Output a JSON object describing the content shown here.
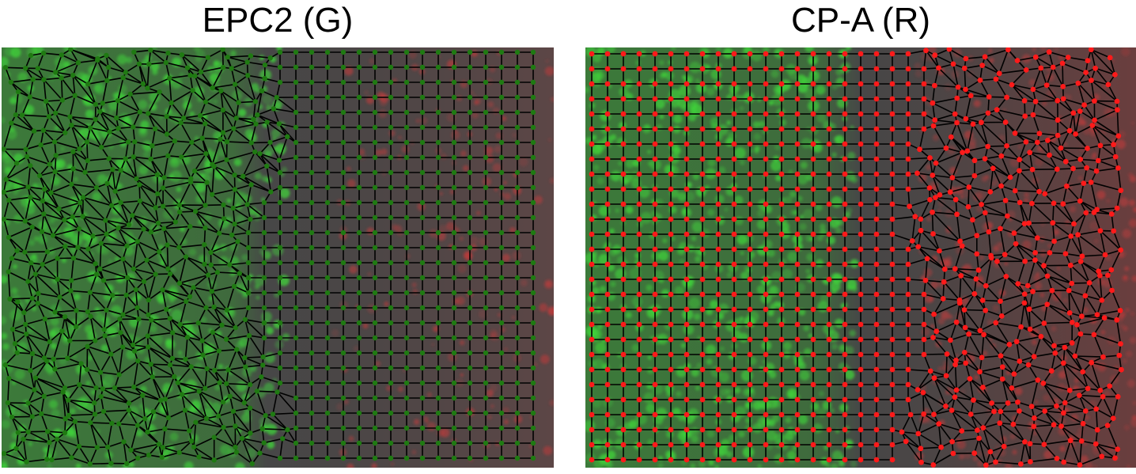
{
  "figure": {
    "panels": [
      {
        "title": "EPC2 (G)",
        "node_color": "#1f7a12",
        "mesh_region": "left",
        "grid_region": "right",
        "fluorescence": "green cells on left, red cells on right"
      },
      {
        "title": "CP-A (R)",
        "node_color": "#ff1a1a",
        "mesh_region": "right",
        "grid_region": "left",
        "fluorescence": "green cells on left, red cells on right"
      }
    ],
    "colors": {
      "green_fluorescence": "#3fd23a",
      "red_fluorescence": "#c93a3a",
      "background_tissue": "#4a4a4a",
      "edges": "#000000"
    }
  }
}
